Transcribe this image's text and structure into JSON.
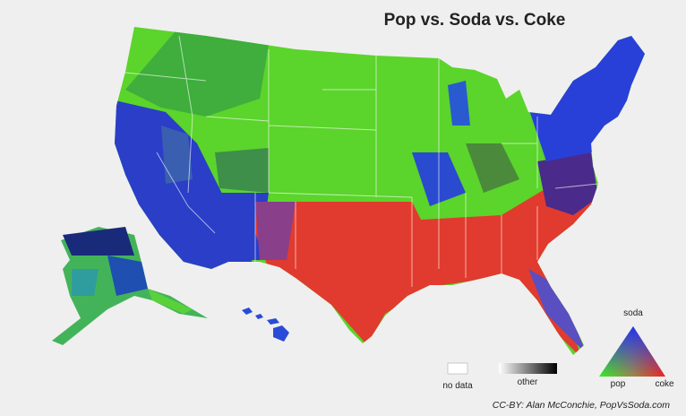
{
  "title": "Pop vs. Soda vs. Coke",
  "legend": {
    "no_data": "no data",
    "other": "other",
    "soda": "soda",
    "pop": "pop",
    "coke": "coke"
  },
  "credit": "CC-BY: Alan McConchie, PopVsSoda.com"
}
